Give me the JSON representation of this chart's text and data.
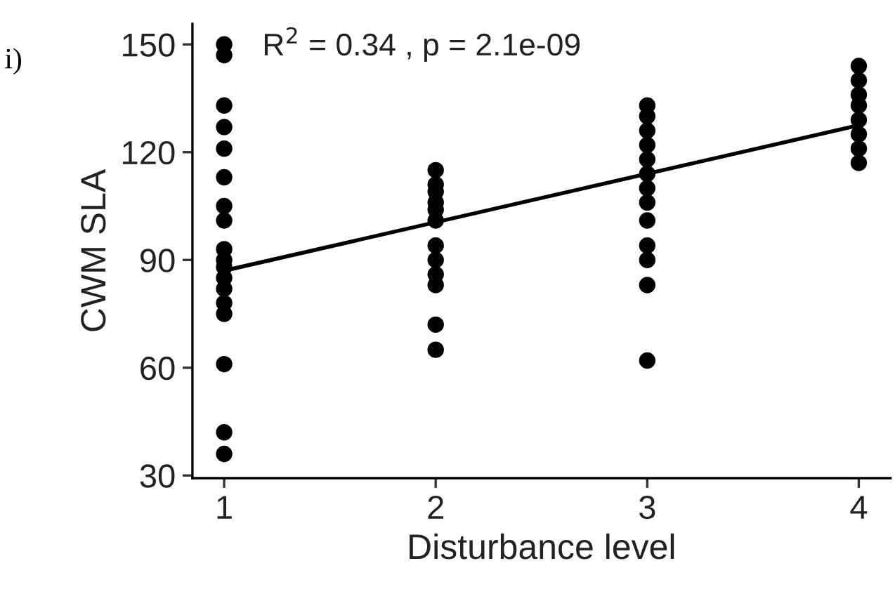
{
  "chart_data": {
    "type": "scatter",
    "xlabel": "Disturbance level",
    "ylabel": "CWM SLA",
    "annotations": [
      "i)",
      "R$^{2}$ = 0.34 , p = 2.1e-09"
    ],
    "series": [
      {
        "color": "#000000",
        "marker": "circle",
        "x": [
          1,
          1,
          1,
          1,
          1,
          1,
          1,
          1,
          1,
          1,
          1,
          1,
          1,
          1,
          1,
          1,
          1,
          1,
          2,
          2,
          2,
          2,
          2,
          2,
          2,
          2,
          2,
          2,
          2,
          2,
          3,
          3,
          3,
          3,
          3,
          3,
          3,
          3,
          3,
          3,
          3,
          3,
          3,
          4,
          4,
          4,
          4,
          4,
          4,
          4,
          4
        ],
        "values": [
          150,
          147,
          133,
          127,
          121,
          113,
          105,
          101,
          93,
          90,
          88,
          85,
          82,
          78,
          75,
          61,
          42,
          36,
          115,
          111,
          109,
          106,
          104,
          101,
          94,
          90,
          86,
          83,
          72,
          65,
          133,
          130,
          126,
          122,
          118,
          114,
          110,
          106,
          101,
          94,
          90,
          83,
          62,
          144,
          140,
          136,
          133,
          129,
          125,
          121,
          117
        ]
      },
      {
        "type": "line",
        "marker": "none",
        "color": "#000000",
        "x": [
          1,
          4
        ],
        "values": [
          87,
          127.5
        ]
      }
    ],
    "xlim": [
      0.85,
      4.15
    ],
    "ylim": [
      29.25,
      155.75
    ],
    "xticks": [
      1,
      2,
      3,
      4
    ],
    "yticks": [
      30,
      60,
      90,
      120,
      150
    ],
    "grid": false,
    "legend": false
  }
}
